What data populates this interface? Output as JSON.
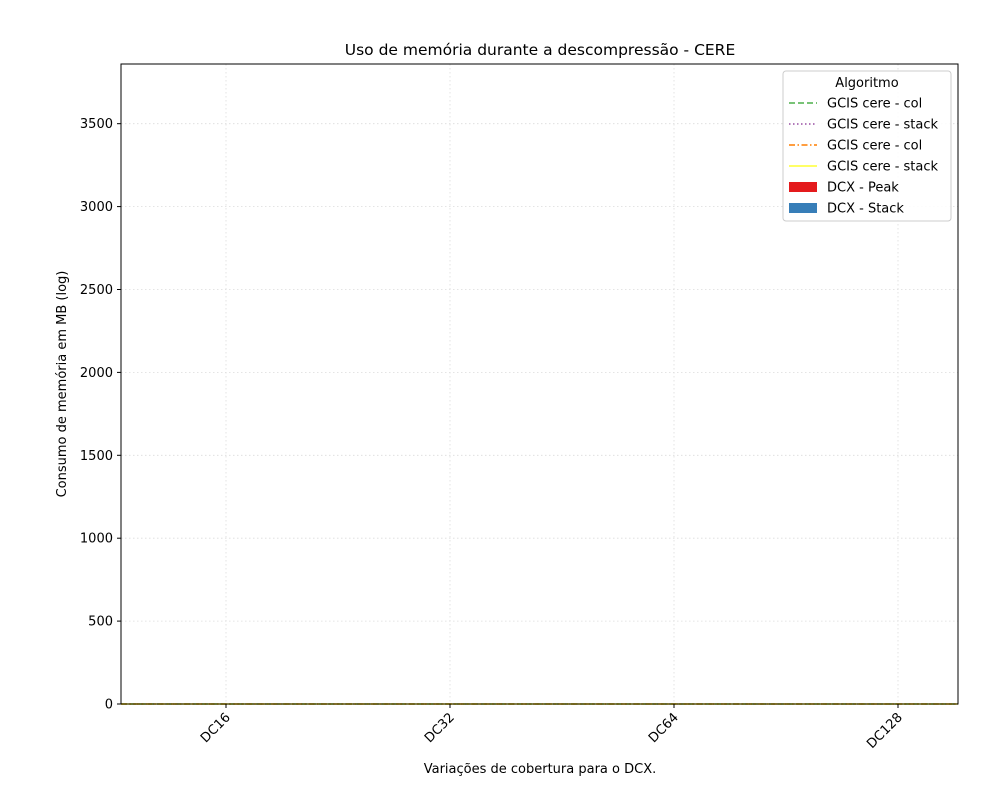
{
  "chart_data": {
    "type": "bar",
    "title": "Uso de memória durante a descompressão -  CERE",
    "xlabel": "Variações de cobertura para o DCX.",
    "ylabel": "Consumo de memória em MB (log)",
    "categories": [
      "DC16",
      "DC32",
      "DC64",
      "DC128"
    ],
    "ylim": [
      0,
      3860
    ],
    "yticks": [
      0,
      500,
      1000,
      1500,
      2000,
      2500,
      3000,
      3500
    ],
    "grid": true,
    "legend": {
      "title": "Algoritmo",
      "placement": "top-right"
    },
    "series": [
      {
        "name": "GCIS cere - col",
        "kind": "line",
        "style": "dashed",
        "color": "#4daf4a",
        "values": [
          0,
          0,
          0,
          0
        ]
      },
      {
        "name": "GCIS cere - stack",
        "kind": "line",
        "style": "dotted",
        "color": "#984ea3",
        "values": [
          0,
          0,
          0,
          0
        ]
      },
      {
        "name": "GCIS cere - col",
        "kind": "line",
        "style": "dashdot",
        "color": "#ff7f00",
        "values": [
          0,
          0,
          0,
          0
        ]
      },
      {
        "name": "GCIS cere - stack",
        "kind": "line",
        "style": "solid",
        "color": "#ffff33",
        "values": [
          0,
          0,
          0,
          0
        ]
      },
      {
        "name": "DCX - Peak",
        "kind": "bar",
        "color": "#e41a1c",
        "values": [
          0,
          0,
          0,
          0
        ]
      },
      {
        "name": "DCX - Stack",
        "kind": "bar",
        "color": "#377eb8",
        "values": [
          0,
          0,
          0,
          0
        ]
      }
    ]
  }
}
